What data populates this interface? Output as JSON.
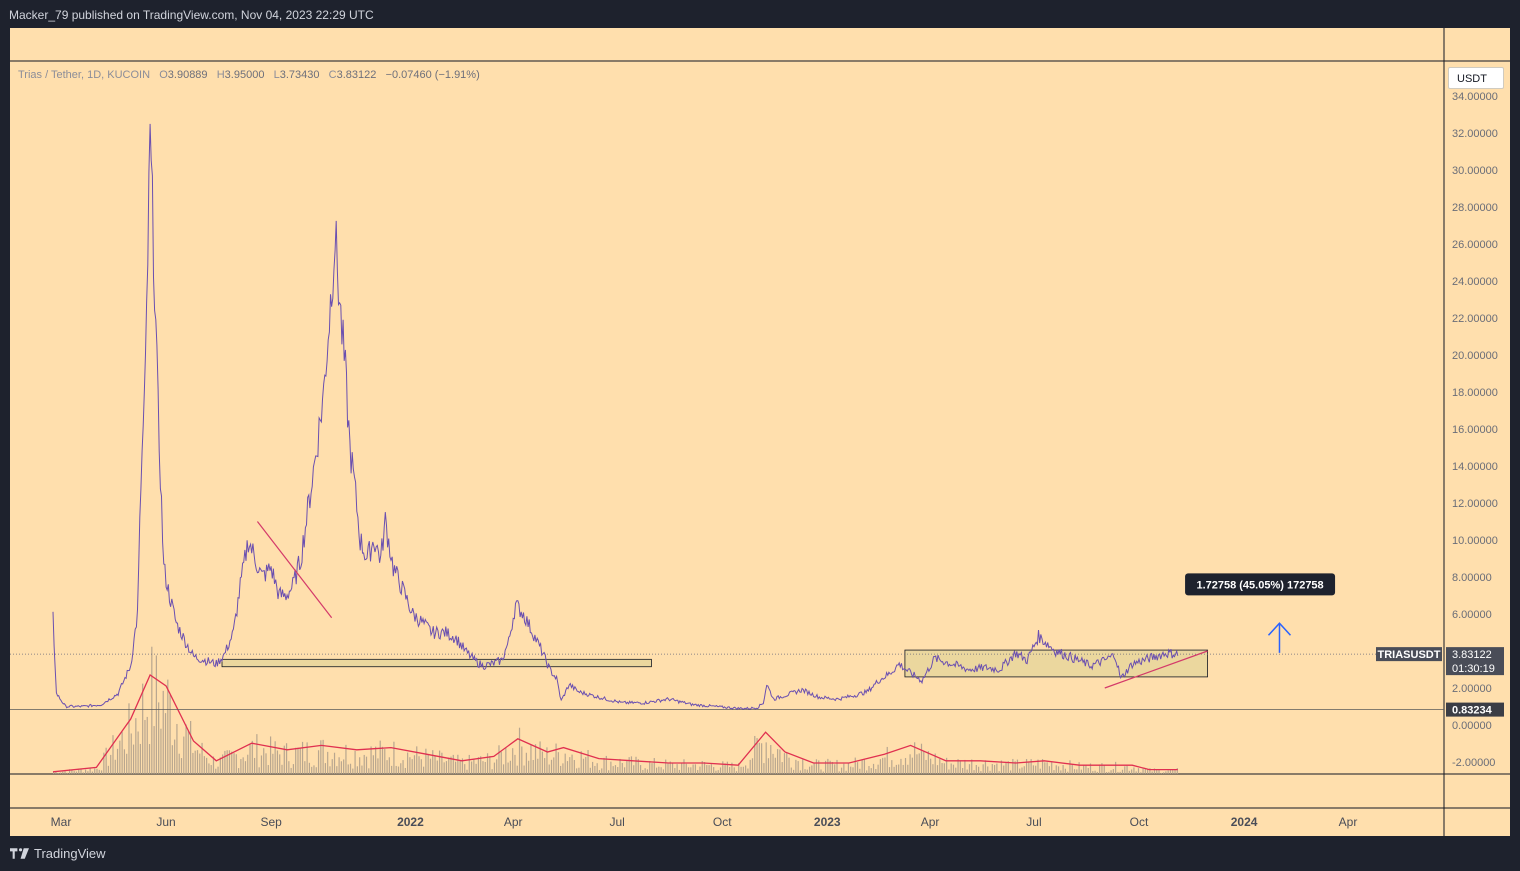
{
  "header": {
    "publisher_line": "Macker_79 published on TradingView.com, Nov 04, 2023 22:29 UTC"
  },
  "footer": {
    "brand": "TradingView"
  },
  "legend": {
    "symbol_line": "Trias / Tether, 1D, KUCOIN",
    "open_label": "O",
    "open": "3.90889",
    "high_label": "H",
    "high": "3.95000",
    "low_label": "L",
    "low": "3.73430",
    "close_label": "C",
    "close": "3.83122",
    "change": "−0.07460 (−1.91%)"
  },
  "price_scale": {
    "currency_button": "USDT"
  },
  "markers": {
    "last_symbol": "TRIASUSDT",
    "last_price": "3.83122",
    "countdown": "01:30:19",
    "support_price": "0.83234",
    "measure_label": "1.72758 (45.05%) 172758"
  },
  "colors": {
    "background": "#ffdfad",
    "price_line": "#6a4fb0",
    "volume_bar": "#b0a08c",
    "volume_ma": "#e03050",
    "range_box": "#e6d49a",
    "trendline": "#d43a6a",
    "arrow": "#2962ff"
  },
  "chart_data": {
    "type": "line",
    "symbol": "TRIASUSDT",
    "interval": "1D",
    "exchange": "KUCOIN",
    "yaxis": {
      "ticks": [
        34,
        32,
        30,
        28,
        26,
        24,
        22,
        20,
        18,
        16,
        14,
        12,
        10,
        8,
        6,
        4,
        2,
        0,
        -2
      ],
      "tick_labels": [
        "34.00000",
        "32.00000",
        "30.00000",
        "28.00000",
        "26.00000",
        "24.00000",
        "22.00000",
        "20.00000",
        "18.00000",
        "16.00000",
        "14.00000",
        "12.00000",
        "10.00000",
        "8.00000",
        "6.00000",
        "",
        "2.00000",
        "0.00000",
        "-2.00000"
      ],
      "ylim": [
        -2.5,
        34
      ]
    },
    "xaxis": {
      "tick_labels": [
        "Mar",
        "Jun",
        "Sep",
        "2022",
        "Apr",
        "Jul",
        "Oct",
        "2023",
        "Apr",
        "Jul",
        "Oct",
        "2024",
        "Apr"
      ],
      "tick_dates": [
        "2021-03-01",
        "2021-06-01",
        "2021-09-01",
        "2022-01-01",
        "2022-04-01",
        "2022-07-01",
        "2022-10-01",
        "2023-01-01",
        "2023-04-01",
        "2023-07-01",
        "2023-10-01",
        "2024-01-01",
        "2024-04-01"
      ],
      "xlim": [
        "2021-02-20",
        "2024-06-20"
      ]
    },
    "series": [
      {
        "type": "line",
        "dates": [
          "2021-02-22",
          "2021-02-25",
          "2021-03-05",
          "2021-03-20",
          "2021-04-05",
          "2021-04-20",
          "2021-05-01",
          "2021-05-07",
          "2021-05-10",
          "2021-05-14",
          "2021-05-18",
          "2021-05-21",
          "2021-05-25",
          "2021-05-30",
          "2021-06-04",
          "2021-06-10",
          "2021-06-18",
          "2021-06-25",
          "2021-07-05",
          "2021-07-15",
          "2021-07-22",
          "2021-07-30",
          "2021-08-05",
          "2021-08-12",
          "2021-08-18",
          "2021-08-24",
          "2021-09-01",
          "2021-09-08",
          "2021-09-14",
          "2021-09-20",
          "2021-09-27",
          "2021-10-04",
          "2021-10-11",
          "2021-10-17",
          "2021-10-22",
          "2021-10-27",
          "2021-11-01",
          "2021-11-05",
          "2021-11-09",
          "2021-11-13",
          "2021-11-18",
          "2021-11-24",
          "2021-11-30",
          "2021-12-06",
          "2021-12-10",
          "2021-12-17",
          "2021-12-24",
          "2022-01-03",
          "2022-01-12",
          "2022-01-20",
          "2022-02-01",
          "2022-02-10",
          "2022-02-18",
          "2022-02-26",
          "2022-03-05",
          "2022-03-14",
          "2022-03-22",
          "2022-03-28",
          "2022-04-03",
          "2022-04-10",
          "2022-04-18",
          "2022-04-26",
          "2022-05-03",
          "2022-05-09",
          "2022-05-13",
          "2022-05-20",
          "2022-05-28",
          "2022-06-15",
          "2022-07-05",
          "2022-07-25",
          "2022-08-15",
          "2022-09-05",
          "2022-09-25",
          "2022-10-15",
          "2022-10-25",
          "2022-11-01",
          "2022-11-06",
          "2022-11-09",
          "2022-11-15",
          "2022-11-25",
          "2022-12-10",
          "2022-12-25",
          "2023-01-10",
          "2023-01-25",
          "2023-02-05",
          "2023-02-15",
          "2023-02-25",
          "2023-03-05",
          "2023-03-15",
          "2023-03-25",
          "2023-04-05",
          "2023-04-20",
          "2023-05-05",
          "2023-05-20",
          "2023-06-01",
          "2023-06-15",
          "2023-06-25",
          "2023-07-05",
          "2023-07-20",
          "2023-08-05",
          "2023-08-20",
          "2023-09-01",
          "2023-09-10",
          "2023-09-15",
          "2023-09-25",
          "2023-10-10",
          "2023-10-25",
          "2023-11-04"
        ],
        "values": [
          5.8,
          1.7,
          1.0,
          1.0,
          1.1,
          1.7,
          3.2,
          6.0,
          13.0,
          19.0,
          31.5,
          26.0,
          17.0,
          8.5,
          7.0,
          5.5,
          4.5,
          3.7,
          3.5,
          3.3,
          3.8,
          5.0,
          7.5,
          10.0,
          9.0,
          8.0,
          8.5,
          7.0,
          7.0,
          7.5,
          9.0,
          12.0,
          15.0,
          18.0,
          22.0,
          26.5,
          22.0,
          19.0,
          15.0,
          13.0,
          10.0,
          9.0,
          10.0,
          9.0,
          11.0,
          8.5,
          7.5,
          6.0,
          5.5,
          5.0,
          5.0,
          4.7,
          4.0,
          3.5,
          3.2,
          3.3,
          3.5,
          4.5,
          6.5,
          6.0,
          5.0,
          4.0,
          3.0,
          2.5,
          1.3,
          2.2,
          1.8,
          1.5,
          1.2,
          1.2,
          1.4,
          1.1,
          1.0,
          0.9,
          0.9,
          0.95,
          1.2,
          2.2,
          1.4,
          1.6,
          1.9,
          1.5,
          1.4,
          1.6,
          1.8,
          2.4,
          2.8,
          3.3,
          2.8,
          2.4,
          3.6,
          3.3,
          3.0,
          3.1,
          3.0,
          3.9,
          3.5,
          4.8,
          4.0,
          3.6,
          3.2,
          3.5,
          3.8,
          2.5,
          3.3,
          3.6,
          3.9,
          3.83
        ]
      }
    ],
    "volume": {
      "dates": [
        "2021-02-22",
        "2021-04-01",
        "2021-05-01",
        "2021-05-18",
        "2021-06-01",
        "2021-06-25",
        "2021-07-15",
        "2021-08-15",
        "2021-09-15",
        "2021-10-15",
        "2021-11-15",
        "2021-12-15",
        "2022-01-15",
        "2022-02-15",
        "2022-03-15",
        "2022-04-05",
        "2022-05-01",
        "2022-05-15",
        "2022-06-15",
        "2022-07-15",
        "2022-08-15",
        "2022-09-15",
        "2022-10-15",
        "2022-11-08",
        "2022-11-25",
        "2022-12-20",
        "2023-01-20",
        "2023-02-20",
        "2023-03-15",
        "2023-04-15",
        "2023-05-15",
        "2023-06-15",
        "2023-07-10",
        "2023-08-10",
        "2023-09-10",
        "2023-09-25",
        "2023-10-10",
        "2023-11-04"
      ],
      "ma_values": [
        0.1,
        0.3,
        2.5,
        4.5,
        4.0,
        1.5,
        0.6,
        1.4,
        1.1,
        1.3,
        1.1,
        1.2,
        0.9,
        0.6,
        0.8,
        1.6,
        1.0,
        1.2,
        0.7,
        0.6,
        0.5,
        0.5,
        0.4,
        1.9,
        1.0,
        0.5,
        0.5,
        0.9,
        1.3,
        0.6,
        0.6,
        0.5,
        0.6,
        0.4,
        0.4,
        0.4,
        0.2,
        0.2
      ]
    },
    "horizontal_levels": [
      0.83234,
      3.83122
    ],
    "drawings": [
      {
        "type": "rectangle",
        "from": "2021-07-20",
        "to": "2022-07-31",
        "top": 3.55,
        "bottom": 3.15
      },
      {
        "type": "rectangle",
        "from": "2023-03-10",
        "to": "2023-11-30",
        "top": 4.05,
        "bottom": 2.6
      },
      {
        "type": "trendline",
        "from_date": "2021-08-20",
        "from_value": 11.0,
        "to_date": "2021-10-24",
        "to_value": 5.8
      },
      {
        "type": "trendline",
        "from_date": "2023-09-01",
        "from_value": 2.0,
        "to_date": "2023-11-30",
        "to_value": 4.0
      },
      {
        "type": "arrow",
        "date": "2024-02-01",
        "from_value": 3.9,
        "to_value": 5.5
      },
      {
        "type": "label",
        "date": "2024-01-15",
        "value": 7.6,
        "text_key": "measure_label"
      }
    ]
  }
}
